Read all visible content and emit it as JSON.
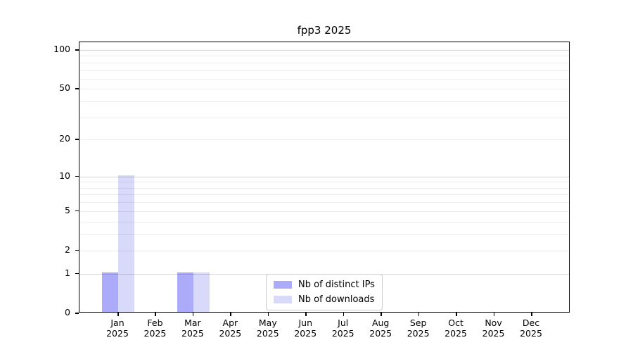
{
  "chart_data": {
    "type": "bar",
    "title": "fpp3 2025",
    "months": [
      "Jan",
      "Feb",
      "Mar",
      "Apr",
      "May",
      "Jun",
      "Jul",
      "Aug",
      "Sep",
      "Oct",
      "Nov",
      "Dec"
    ],
    "year": "2025",
    "series": [
      {
        "name": "Nb of distinct IPs",
        "color": "#ababfa",
        "values": [
          1,
          0,
          1,
          0,
          0,
          0,
          0,
          0,
          0,
          0,
          0,
          0
        ]
      },
      {
        "name": "Nb of downloads",
        "color": "#d9d9f9",
        "values": [
          10,
          0,
          1,
          0,
          0,
          0,
          0,
          0,
          0,
          0,
          0,
          0
        ]
      }
    ],
    "y_ticks": [
      0,
      1,
      2,
      5,
      10,
      20,
      50,
      100
    ],
    "scale": "log1p",
    "ylim": [
      0,
      116
    ],
    "grid_minor": [
      2,
      3,
      4,
      5,
      6,
      7,
      8,
      9,
      20,
      30,
      40,
      50,
      60,
      70,
      80,
      90
    ],
    "grid_major": [
      1,
      10,
      100
    ],
    "legend": {
      "position": "lower center"
    },
    "axis_color": "#000000",
    "background": "#ffffff"
  }
}
